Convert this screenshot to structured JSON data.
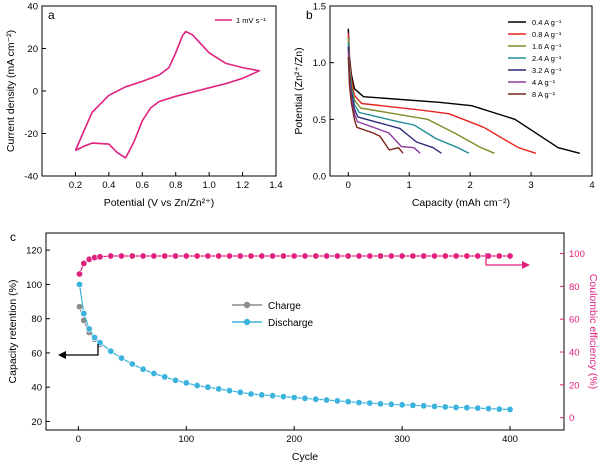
{
  "chart_data": [
    {
      "panel": "a",
      "type": "line",
      "xlabel": "Potential (V vs Zn/Zn²⁺)",
      "ylabel": "Current density (mA cm⁻²)",
      "xlim": [
        0.0,
        1.4
      ],
      "ylim": [
        -40,
        40
      ],
      "xticks": [
        0.2,
        0.4,
        0.6,
        0.8,
        1.0,
        1.2,
        1.4
      ],
      "yticks": [
        -40,
        -20,
        0,
        20,
        40
      ],
      "xtick_labels": [
        "0.2",
        "0.4",
        "0.6",
        "0.8",
        "1.0",
        "1.2",
        "1.4"
      ],
      "ytick_labels": [
        "-40",
        "-20",
        "0",
        "20",
        "40"
      ],
      "legend_position": "top-right",
      "series": [
        {
          "name": "1 mV s⁻¹",
          "color": "#e0217e",
          "points": [
            [
              0.2,
              -28
            ],
            [
              0.3,
              -10
            ],
            [
              0.4,
              -2
            ],
            [
              0.5,
              2
            ],
            [
              0.6,
              4.5
            ],
            [
              0.7,
              7.5
            ],
            [
              0.76,
              11
            ],
            [
              0.8,
              18
            ],
            [
              0.84,
              26
            ],
            [
              0.86,
              28
            ],
            [
              0.9,
              26.5
            ],
            [
              1.0,
              18
            ],
            [
              1.1,
              13
            ],
            [
              1.2,
              11
            ],
            [
              1.3,
              9.5
            ],
            [
              1.2,
              6
            ],
            [
              1.1,
              3.5
            ],
            [
              1.0,
              1.5
            ],
            [
              0.9,
              -0.5
            ],
            [
              0.8,
              -2.5
            ],
            [
              0.7,
              -5
            ],
            [
              0.65,
              -8
            ],
            [
              0.6,
              -14
            ],
            [
              0.55,
              -24
            ],
            [
              0.5,
              -31.5
            ],
            [
              0.45,
              -29
            ],
            [
              0.4,
              -25
            ],
            [
              0.3,
              -24.5
            ],
            [
              0.25,
              -26
            ],
            [
              0.2,
              -28
            ]
          ]
        }
      ]
    },
    {
      "panel": "b",
      "type": "line",
      "xlabel": "Capacity (mAh cm⁻²)",
      "ylabel": "Potential (Zn²⁺/Zn)",
      "xlim": [
        -0.3,
        4
      ],
      "ylim": [
        0.0,
        1.5
      ],
      "xticks": [
        0,
        1,
        2,
        3,
        4
      ],
      "yticks": [
        0.0,
        0.5,
        1.0,
        1.5
      ],
      "xtick_labels": [
        "0",
        "1",
        "2",
        "3",
        "4"
      ],
      "ytick_labels": [
        "0.0",
        "0.5",
        "1.0",
        "1.5"
      ],
      "legend_position": "top-right",
      "series": [
        {
          "name": "0.4 A g⁻¹",
          "color": "#000000",
          "start": 1.3,
          "drop_x": 0.25,
          "knee_y": 0.7,
          "plateau_end_y": 0.62,
          "x_end": 3.8,
          "y_end": 0.2
        },
        {
          "name": "0.8 A g⁻¹",
          "color": "#e8231f",
          "start": 1.26,
          "drop_x": 0.22,
          "knee_y": 0.64,
          "plateau_end_y": 0.55,
          "x_end": 3.08,
          "y_end": 0.2
        },
        {
          "name": "1.6 A g⁻¹",
          "color": "#7f8c28",
          "start": 1.22,
          "drop_x": 0.2,
          "knee_y": 0.6,
          "plateau_end_y": 0.5,
          "x_end": 2.4,
          "y_end": 0.2
        },
        {
          "name": "2.4 A g⁻¹",
          "color": "#1f8f95",
          "start": 1.18,
          "drop_x": 0.18,
          "knee_y": 0.56,
          "plateau_end_y": 0.45,
          "x_end": 1.98,
          "y_end": 0.2
        },
        {
          "name": "3.2 A g⁻¹",
          "color": "#2a2a78",
          "start": 1.14,
          "drop_x": 0.16,
          "knee_y": 0.52,
          "plateau_end_y": 0.42,
          "x_end": 1.53,
          "y_end": 0.2
        },
        {
          "name": "4 A g⁻¹",
          "color": "#8e3d9c",
          "start": 1.1,
          "drop_x": 0.15,
          "knee_y": 0.48,
          "plateau_end_y": 0.38,
          "x_end": 1.18,
          "y_end": 0.2
        },
        {
          "name": "8 A g⁻¹",
          "color": "#7a2418",
          "start": 1.05,
          "drop_x": 0.14,
          "knee_y": 0.43,
          "plateau_end_y": 0.35,
          "x_end": 0.9,
          "y_end": 0.2
        }
      ]
    },
    {
      "panel": "c",
      "type": "scatter",
      "xlabel": "Cycle",
      "ylabel": "Capacity retention (%)",
      "y2label": "Coulombic efficiency (%)",
      "xlim": [
        -30,
        450
      ],
      "ylim": [
        15,
        130
      ],
      "y2lim": [
        -7.5,
        112.5
      ],
      "xticks": [
        0,
        100,
        200,
        300,
        400
      ],
      "yticks": [
        20,
        40,
        60,
        80,
        100,
        120
      ],
      "y2ticks": [
        0,
        20,
        40,
        60,
        80,
        100
      ],
      "xtick_labels": [
        "0",
        "100",
        "200",
        "300",
        "400"
      ],
      "ytick_labels": [
        "20",
        "40",
        "60",
        "80",
        "100",
        "120"
      ],
      "y2tick_labels": [
        "0",
        "20",
        "40",
        "60",
        "80",
        "100"
      ],
      "legend_position": "center",
      "series": [
        {
          "name": "Charge",
          "axis": "left",
          "color": "#8c8c8c",
          "x": [
            1,
            5,
            10,
            15,
            20
          ],
          "y": [
            87,
            79,
            72,
            68,
            65
          ]
        },
        {
          "name": "Discharge",
          "axis": "left",
          "color": "#3bb3dc",
          "x": [
            1,
            5,
            10,
            15,
            20,
            30,
            40,
            50,
            60,
            70,
            80,
            90,
            100,
            110,
            120,
            130,
            140,
            150,
            160,
            170,
            180,
            190,
            200,
            210,
            220,
            230,
            240,
            250,
            260,
            270,
            280,
            290,
            300,
            310,
            320,
            330,
            340,
            350,
            360,
            370,
            380,
            390,
            400
          ],
          "y": [
            100,
            83,
            74,
            69,
            66,
            61,
            57,
            53.5,
            50.5,
            48,
            46,
            44,
            42.5,
            41,
            40,
            39,
            38,
            37,
            36,
            35.5,
            35,
            34.5,
            34,
            33.5,
            33,
            32.5,
            32,
            31.5,
            31,
            30.7,
            30.3,
            30,
            29.7,
            29.4,
            29.1,
            28.8,
            28.5,
            28.2,
            28,
            27.8,
            27.5,
            27.2,
            27
          ]
        },
        {
          "name": "",
          "axis": "right",
          "color": "#e0217e",
          "x": [
            1,
            5,
            10,
            15,
            20,
            30,
            40,
            50,
            60,
            70,
            80,
            90,
            100,
            110,
            120,
            130,
            140,
            150,
            160,
            170,
            180,
            190,
            200,
            210,
            220,
            230,
            240,
            250,
            260,
            270,
            280,
            290,
            300,
            310,
            320,
            330,
            340,
            350,
            360,
            370,
            380,
            390,
            400
          ],
          "y": [
            87.5,
            94,
            96.5,
            97.5,
            98,
            98.5,
            98.5,
            98.5,
            98.5,
            98.5,
            98.5,
            98.5,
            98.5,
            98.5,
            98.5,
            98.5,
            98.5,
            98.5,
            98.5,
            98.5,
            98.5,
            98.5,
            98.5,
            98.5,
            98.5,
            98.5,
            98.5,
            98.5,
            98.5,
            98.5,
            98.5,
            98.5,
            98.5,
            98.5,
            98.5,
            98.5,
            98.5,
            98.5,
            98.5,
            98.5,
            98.5,
            98.5,
            98.5
          ]
        }
      ]
    }
  ],
  "labels": {
    "panel_a": "a",
    "panel_b": "b",
    "panel_c": "c"
  }
}
